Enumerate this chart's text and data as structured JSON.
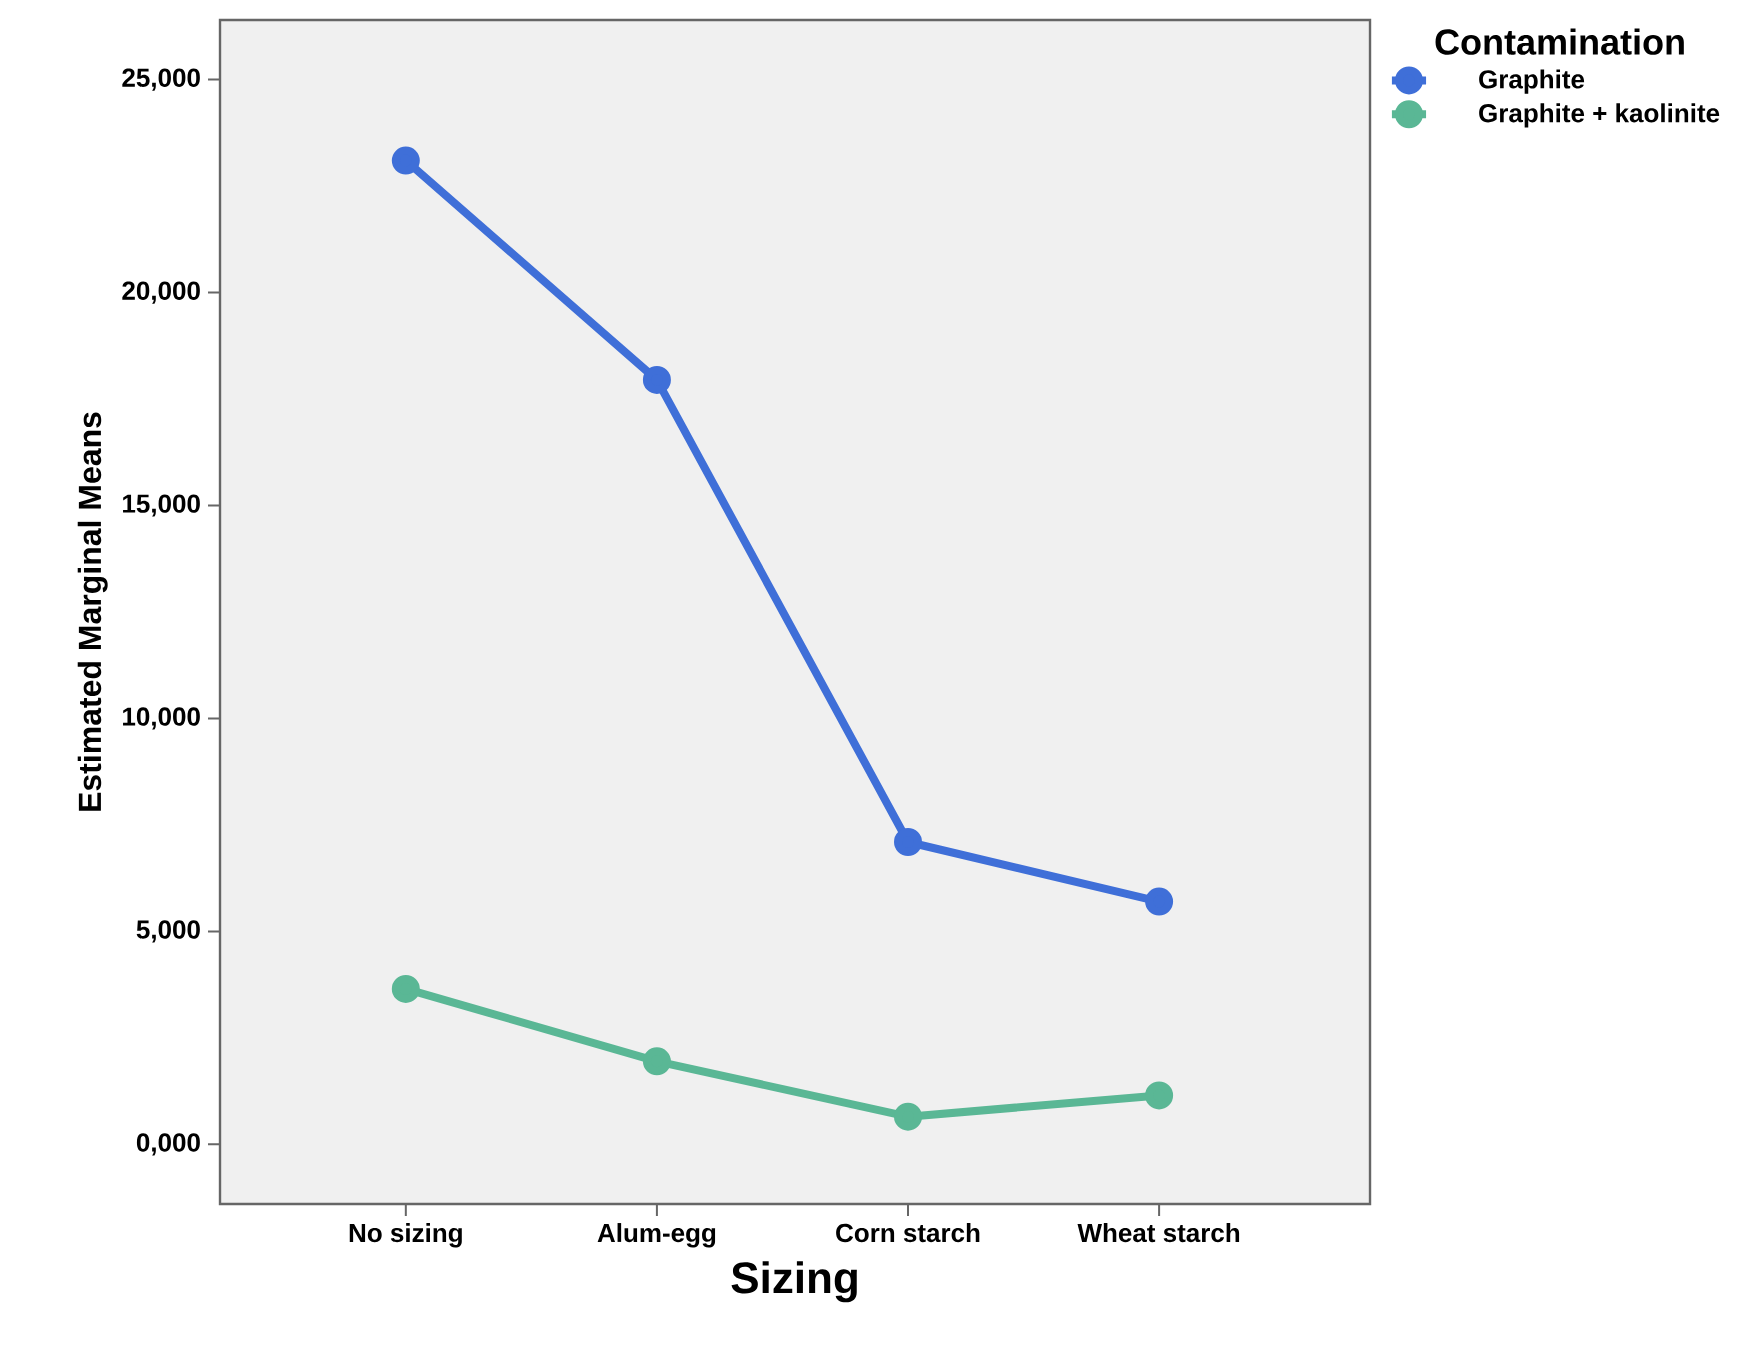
{
  "chart_data": {
    "type": "line",
    "xlabel": "Sizing",
    "ylabel": "Estimated Marginal Means",
    "legend_title": "Contamination",
    "categories": [
      "No sizing",
      "Alum-egg",
      "Corn starch",
      "Wheat starch"
    ],
    "series": [
      {
        "name": "Graphite",
        "color": "#3f6fd8",
        "values": [
          23100,
          17950,
          7100,
          5700
        ]
      },
      {
        "name": "Graphite + kaolinite",
        "color": "#5ab795",
        "values": [
          3650,
          1950,
          650,
          1150
        ]
      }
    ],
    "ylim": [
      -1400,
      26400
    ],
    "yticks": [
      {
        "value": 0,
        "label": "0,000"
      },
      {
        "value": 5000,
        "label": "5,000"
      },
      {
        "value": 10000,
        "label": "10,000"
      },
      {
        "value": 15000,
        "label": "15,000"
      },
      {
        "value": 20000,
        "label": "20,000"
      },
      {
        "value": 25000,
        "label": "25,000"
      }
    ],
    "grid": false,
    "legend": "top right",
    "marker": "circle",
    "line_style": "solid"
  }
}
